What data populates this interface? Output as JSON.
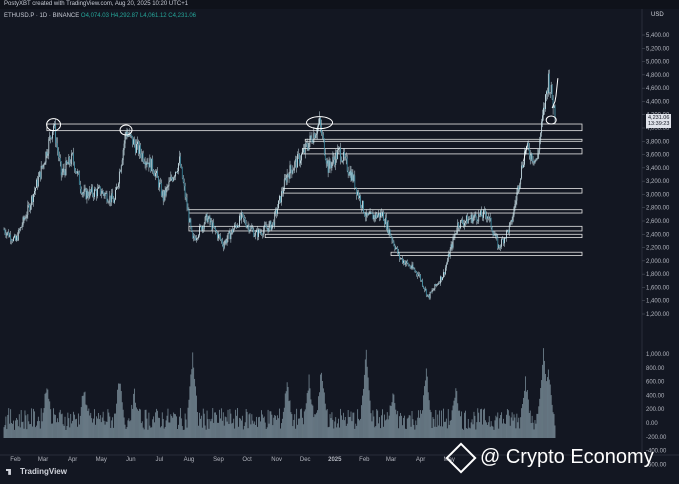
{
  "header": {
    "attribution": "PostyXBT created with TradingView.com, Aug 20, 2025 10:20 UTC+1",
    "symbol": "ETHUSD.P · 1D · BINANCE",
    "ohlc": "O4,074.03  H4,292.87  L4,061.12  C4,231.06"
  },
  "currency": "USD",
  "current_price": "4,231.06",
  "countdown": "13:39:23",
  "branding": "TradingView",
  "watermark": "@ Crypto Economy",
  "colors": {
    "background": "#131722",
    "up": "#26a69a",
    "down": "#ef5350",
    "candle": "#d1e8f0",
    "line": "#ffffff"
  },
  "chart_data": {
    "type": "candlestick",
    "price_axis_ticks": [
      "5,400.00",
      "5,200.00",
      "5,000.00",
      "4,800.00",
      "4,600.00",
      "4,400.00",
      "4,200.00",
      "4,000.00",
      "3,800.00",
      "3,600.00",
      "3,400.00",
      "3,200.00",
      "3,000.00",
      "2,800.00",
      "2,600.00",
      "2,400.00",
      "2,200.00",
      "2,000.00",
      "1,800.00",
      "1,600.00",
      "1,400.00",
      "1,200.00"
    ],
    "volume_axis_ticks": [
      "1,000.00",
      "800.00",
      "600.00",
      "400.00",
      "200.00",
      "0.00",
      "-200.00",
      "-400.00",
      "-600.00"
    ],
    "time_axis_ticks": [
      "Feb",
      "Mar",
      "Apr",
      "May",
      "Jun",
      "Jul",
      "Aug",
      "Sep",
      "Oct",
      "Nov",
      "Dec",
      "2025",
      "Feb",
      "Mar",
      "Apr",
      "May"
    ],
    "ylim": [
      1200,
      5400
    ],
    "price_path": [
      [
        "2024-01-20",
        2470
      ],
      [
        "2024-02-01",
        2300
      ],
      [
        "2024-02-15",
        2800
      ],
      [
        "2024-03-01",
        3450
      ],
      [
        "2024-03-12",
        4050
      ],
      [
        "2024-03-20",
        3300
      ],
      [
        "2024-04-01",
        3550
      ],
      [
        "2024-04-12",
        3000
      ],
      [
        "2024-04-30",
        3050
      ],
      [
        "2024-05-15",
        2900
      ],
      [
        "2024-05-27",
        3950
      ],
      [
        "2024-06-10",
        3650
      ],
      [
        "2024-06-25",
        3400
      ],
      [
        "2024-07-05",
        2950
      ],
      [
        "2024-07-22",
        3500
      ],
      [
        "2024-08-05",
        2300
      ],
      [
        "2024-08-20",
        2650
      ],
      [
        "2024-09-06",
        2250
      ],
      [
        "2024-09-25",
        2650
      ],
      [
        "2024-10-10",
        2400
      ],
      [
        "2024-10-28",
        2550
      ],
      [
        "2024-11-12",
        3300
      ],
      [
        "2024-11-28",
        3600
      ],
      [
        "2024-12-16",
        4070
      ],
      [
        "2024-12-25",
        3400
      ],
      [
        "2025-01-06",
        3650
      ],
      [
        "2025-01-20",
        3250
      ],
      [
        "2025-02-03",
        2650
      ],
      [
        "2025-02-20",
        2700
      ],
      [
        "2025-03-10",
        2050
      ],
      [
        "2025-03-30",
        1800
      ],
      [
        "2025-04-09",
        1450
      ],
      [
        "2025-04-25",
        1800
      ],
      [
        "2025-05-10",
        2550
      ],
      [
        "2025-05-25",
        2650
      ],
      [
        "2025-06-10",
        2700
      ],
      [
        "2025-06-22",
        2200
      ],
      [
        "2025-07-05",
        2550
      ],
      [
        "2025-07-20",
        3700
      ],
      [
        "2025-08-01",
        3500
      ],
      [
        "2025-08-13",
        4750
      ],
      [
        "2025-08-20",
        4231
      ]
    ],
    "horizontal_zones": [
      {
        "from": "2024-03-05",
        "low": 3960,
        "high": 4060
      },
      {
        "from": "2024-11-28",
        "low": 3610,
        "high": 3690
      },
      {
        "from": "2024-12-01",
        "low": 3800,
        "high": 3830
      },
      {
        "from": "2024-11-08",
        "low": 3020,
        "high": 3090
      },
      {
        "from": "2024-08-01",
        "low": 2720,
        "high": 2770
      },
      {
        "from": "2024-08-01",
        "low": 2450,
        "high": 2520
      },
      {
        "from": "2024-10-20",
        "low": 2350,
        "high": 2400
      },
      {
        "from": "2025-03-01",
        "low": 2080,
        "high": 2130
      }
    ],
    "volume_profile": "volume bars at bottom, spikes in Mar 2024, Aug 2024, Dec 2024, Feb 2025, Apr 2025, Aug 2025"
  }
}
